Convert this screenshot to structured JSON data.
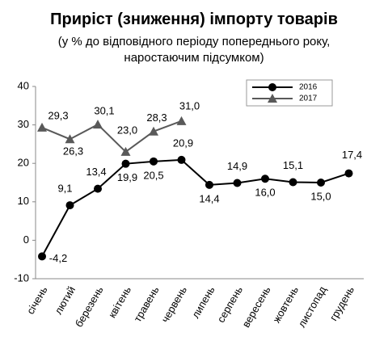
{
  "chart_data": {
    "type": "line",
    "title": "Приріст (зниження) імпорту товарів",
    "subtitle": [
      "(у % до відповідного періоду попереднього року,",
      "наростаючим підсумком)"
    ],
    "categories": [
      "січень",
      "лютий",
      "березень",
      "квітень",
      "травень",
      "червень",
      "липень",
      "серпень",
      "вересень",
      "жовтень",
      "листопад",
      "грудень"
    ],
    "series": [
      {
        "name": "2016",
        "color": "#000000",
        "marker": "circle",
        "values": [
          -4.2,
          9.1,
          13.4,
          19.9,
          20.5,
          20.9,
          14.4,
          14.9,
          16.0,
          15.1,
          15.0,
          17.4
        ],
        "value_labels": [
          "-4,2",
          "9,1",
          "13,4",
          "19,9",
          "20,5",
          "20,9",
          "14,4",
          "14,9",
          "16,0",
          "15,1",
          "15,0",
          "17,4"
        ]
      },
      {
        "name": "2017",
        "color": "#595959",
        "marker": "triangle",
        "values": [
          29.3,
          26.3,
          30.1,
          23.0,
          28.3,
          31.0,
          null,
          null,
          null,
          null,
          null,
          null
        ],
        "value_labels": [
          "29,3",
          "26,3",
          "30,1",
          "23,0",
          "28,3",
          "31,0",
          null,
          null,
          null,
          null,
          null,
          null
        ]
      }
    ],
    "ylim": [
      -10,
      40
    ],
    "yticks": [
      -10,
      0,
      10,
      20,
      30,
      40
    ],
    "grid": false,
    "legend": "upper right"
  }
}
